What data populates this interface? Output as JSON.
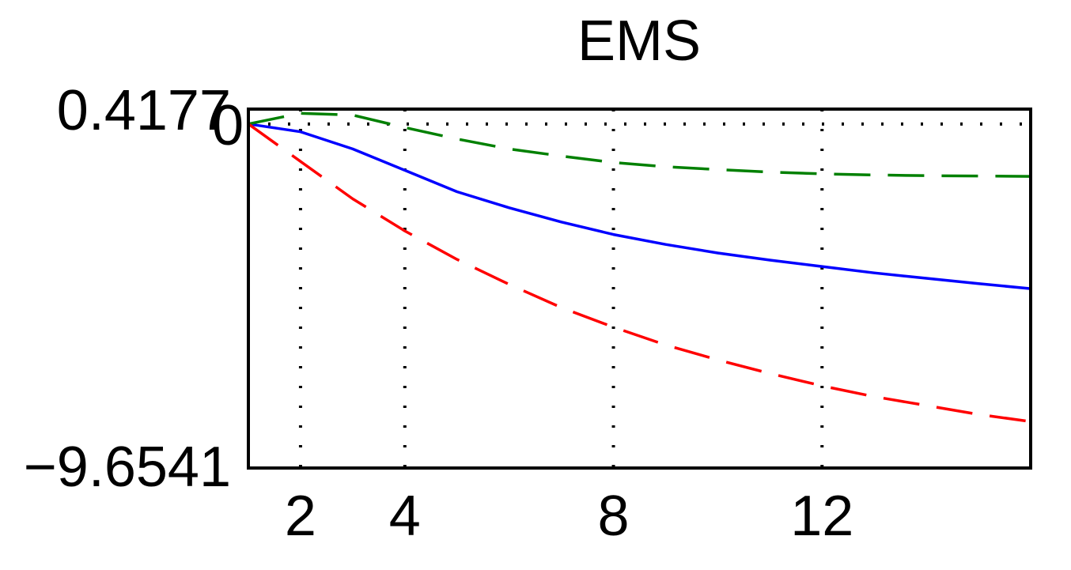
{
  "chart_data": {
    "type": "line",
    "title": "EMS",
    "xlabel": "",
    "ylabel": "",
    "xlim": [
      1,
      16
    ],
    "ylim": [
      -9.6541,
      0.4177
    ],
    "x_ticks": [
      2,
      4,
      8,
      12
    ],
    "y_ticks": [
      0.4177,
      0,
      -9.6541
    ],
    "y_tick_labels": [
      "0.4177",
      "0",
      "−9.6541"
    ],
    "grid": true,
    "legend": "none",
    "x": [
      1,
      2,
      3,
      4,
      5,
      6,
      7,
      8,
      9,
      10,
      11,
      12,
      13,
      14,
      15,
      16
    ],
    "series": [
      {
        "color": "#0000ff",
        "style": "solid",
        "values": [
          0,
          -0.22,
          -0.7,
          -1.3,
          -1.9,
          -2.35,
          -2.75,
          -3.1,
          -3.38,
          -3.62,
          -3.82,
          -4.0,
          -4.18,
          -4.33,
          -4.48,
          -4.62
        ]
      },
      {
        "color": "#008000",
        "style": "dashed",
        "values": [
          0,
          0.3,
          0.25,
          -0.1,
          -0.42,
          -0.7,
          -0.9,
          -1.08,
          -1.2,
          -1.28,
          -1.35,
          -1.4,
          -1.43,
          -1.45,
          -1.46,
          -1.47
        ]
      },
      {
        "color": "#ff0000",
        "style": "dashed",
        "values": [
          0,
          -1.05,
          -2.1,
          -3.0,
          -3.8,
          -4.5,
          -5.15,
          -5.7,
          -6.2,
          -6.62,
          -7.0,
          -7.35,
          -7.65,
          -7.9,
          -8.15,
          -8.35
        ]
      }
    ]
  }
}
